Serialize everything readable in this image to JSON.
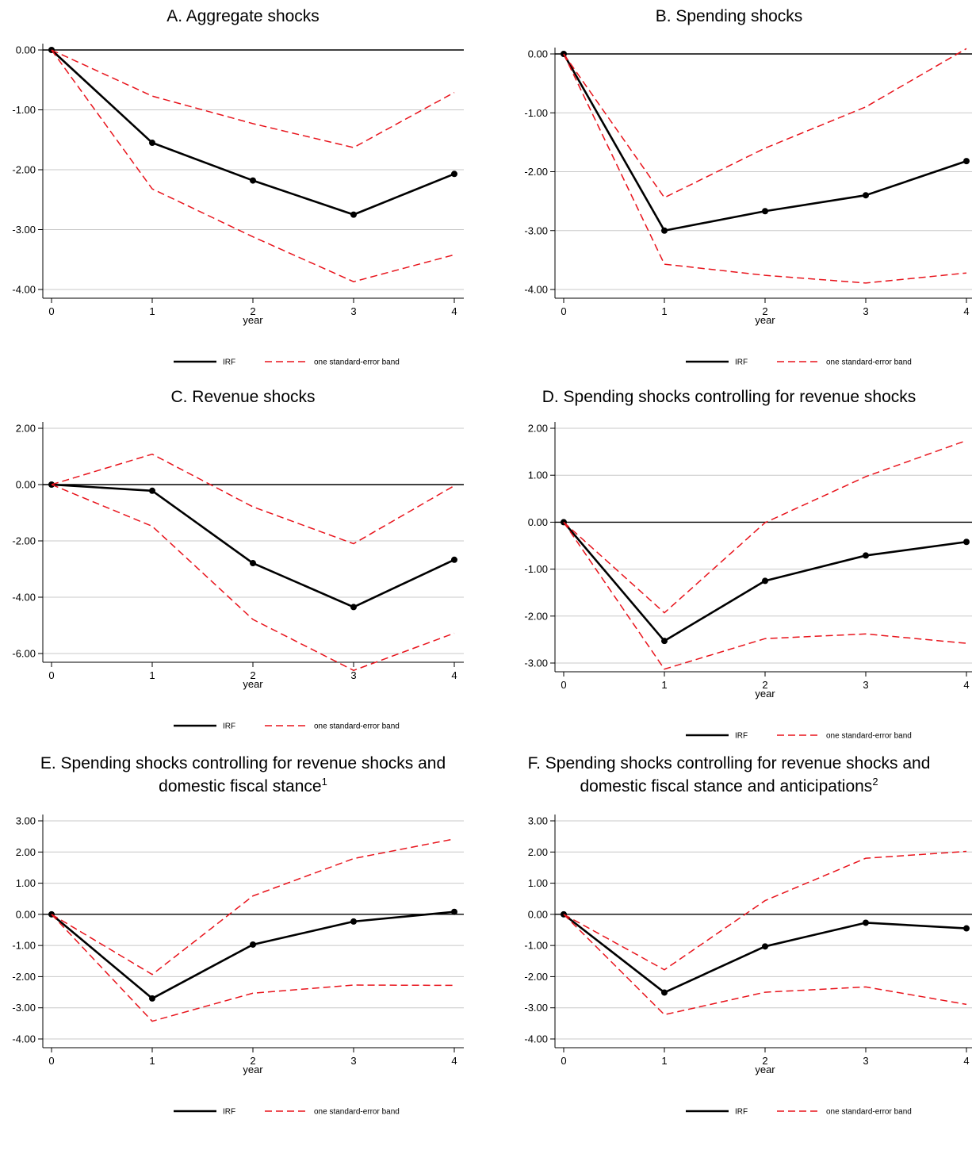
{
  "legend_labels": {
    "irf": "IRF",
    "band": "one standard-error band"
  },
  "colors": {
    "irf": "#000000",
    "band": "#e8141c",
    "grid": "#c8c8c8",
    "zero": "#000000"
  },
  "chart_data": [
    {
      "id": "A",
      "type": "line",
      "title": "A. Aggregate shocks",
      "title_line2": "",
      "title_sup": "",
      "xlabel": "year",
      "ylabel": "",
      "x": [
        0,
        1,
        2,
        3,
        4
      ],
      "xlim": [
        0,
        4
      ],
      "ylim": [
        -4,
        0
      ],
      "yticks": [
        0,
        -1,
        -2,
        -3,
        -4
      ],
      "ytick_labels": [
        "0.00",
        "-1.00",
        "-2.00",
        "-3.00",
        "-4.00"
      ],
      "series": [
        {
          "name": "IRF",
          "values": [
            0,
            -1.55,
            -2.18,
            -2.75,
            -2.07
          ]
        },
        {
          "name": "one standard-error band",
          "values": [
            0,
            -0.77,
            -1.23,
            -1.63,
            -0.71
          ]
        },
        {
          "name": "one standard-error band",
          "values": [
            0,
            -2.32,
            -3.12,
            -3.87,
            -3.42
          ]
        }
      ]
    },
    {
      "id": "B",
      "type": "line",
      "title": "B. Spending shocks",
      "title_line2": "",
      "title_sup": "",
      "xlabel": "year",
      "ylabel": "",
      "x": [
        0,
        1,
        2,
        3,
        4
      ],
      "xlim": [
        0,
        4
      ],
      "ylim": [
        -4,
        0
      ],
      "yticks": [
        0,
        -1,
        -2,
        -3,
        -4
      ],
      "ytick_labels": [
        "0.00",
        "-1.00",
        "-2.00",
        "-3.00",
        "-4.00"
      ],
      "series": [
        {
          "name": "IRF",
          "values": [
            0,
            -3.0,
            -2.67,
            -2.4,
            -1.82
          ]
        },
        {
          "name": "one standard-error band",
          "values": [
            0,
            -2.44,
            -1.6,
            -0.9,
            0.09
          ]
        },
        {
          "name": "one standard-error band",
          "values": [
            0,
            -3.57,
            -3.76,
            -3.89,
            -3.72
          ]
        }
      ]
    },
    {
      "id": "C",
      "type": "line",
      "title": "C. Revenue shocks",
      "title_line2": "",
      "title_sup": "",
      "xlabel": "year",
      "ylabel": "",
      "x": [
        0,
        1,
        2,
        3,
        4
      ],
      "xlim": [
        0,
        4
      ],
      "ylim": [
        -6,
        2
      ],
      "yticks": [
        2,
        0,
        -2,
        -4,
        -6
      ],
      "ytick_labels": [
        "2.00",
        "0.00",
        "-2.00",
        "-4.00",
        "-6.00"
      ],
      "series": [
        {
          "name": "IRF",
          "values": [
            0,
            -0.22,
            -2.79,
            -4.35,
            -2.67
          ]
        },
        {
          "name": "one standard-error band",
          "values": [
            0,
            1.08,
            -0.79,
            -2.1,
            -0.04
          ]
        },
        {
          "name": "one standard-error band",
          "values": [
            0,
            -1.48,
            -4.79,
            -6.6,
            -5.28
          ]
        }
      ]
    },
    {
      "id": "D",
      "type": "line",
      "title": "D. Spending shocks controlling for revenue shocks",
      "title_line2": "",
      "title_sup": "",
      "xlabel": "year",
      "ylabel": "",
      "x": [
        0,
        1,
        2,
        3,
        4
      ],
      "xlim": [
        0,
        4
      ],
      "ylim": [
        -3,
        2
      ],
      "yticks": [
        2,
        1,
        0,
        -1,
        -2,
        -3
      ],
      "ytick_labels": [
        "2.00",
        "1.00",
        "0.00",
        "-1.00",
        "-2.00",
        "-3.00"
      ],
      "series": [
        {
          "name": "IRF",
          "values": [
            0,
            -2.53,
            -1.25,
            -0.71,
            -0.42
          ]
        },
        {
          "name": "one standard-error band",
          "values": [
            0,
            -1.93,
            -0.01,
            0.97,
            1.74
          ]
        },
        {
          "name": "one standard-error band",
          "values": [
            0,
            -3.13,
            -2.48,
            -2.38,
            -2.58
          ]
        }
      ]
    },
    {
      "id": "E",
      "type": "line",
      "title": "E. Spending shocks controlling for revenue shocks and",
      "title_line2": "domestic fiscal stance",
      "title_sup": "1",
      "xlabel": "year",
      "ylabel": "",
      "x": [
        0,
        1,
        2,
        3,
        4
      ],
      "xlim": [
        0,
        4
      ],
      "ylim": [
        -4,
        3
      ],
      "yticks": [
        3,
        2,
        1,
        0,
        -1,
        -2,
        -3,
        -4
      ],
      "ytick_labels": [
        "3.00",
        "2.00",
        "1.00",
        "0.00",
        "-1.00",
        "-2.00",
        "-3.00",
        "-4.00"
      ],
      "series": [
        {
          "name": "IRF",
          "values": [
            0,
            -2.7,
            -0.97,
            -0.23,
            0.08
          ]
        },
        {
          "name": "one standard-error band",
          "values": [
            0,
            -1.93,
            0.59,
            1.79,
            2.42
          ]
        },
        {
          "name": "one standard-error band",
          "values": [
            0,
            -3.43,
            -2.53,
            -2.27,
            -2.28
          ]
        }
      ]
    },
    {
      "id": "F",
      "type": "line",
      "title": "F. Spending shocks controlling for revenue shocks and",
      "title_line2": "domestic fiscal stance and anticipations",
      "title_sup": "2",
      "xlabel": "year",
      "ylabel": "",
      "x": [
        0,
        1,
        2,
        3,
        4
      ],
      "xlim": [
        0,
        4
      ],
      "ylim": [
        -4,
        3
      ],
      "yticks": [
        3,
        2,
        1,
        0,
        -1,
        -2,
        -3,
        -4
      ],
      "ytick_labels": [
        "3.00",
        "2.00",
        "1.00",
        "0.00",
        "-1.00",
        "-2.00",
        "-3.00",
        "-4.00"
      ],
      "series": [
        {
          "name": "IRF",
          "values": [
            0,
            -2.51,
            -1.03,
            -0.27,
            -0.45
          ]
        },
        {
          "name": "one standard-error band",
          "values": [
            0,
            -1.78,
            0.44,
            1.8,
            2.02
          ]
        },
        {
          "name": "one standard-error band",
          "values": [
            0,
            -3.22,
            -2.5,
            -2.33,
            -2.89
          ]
        }
      ]
    }
  ]
}
